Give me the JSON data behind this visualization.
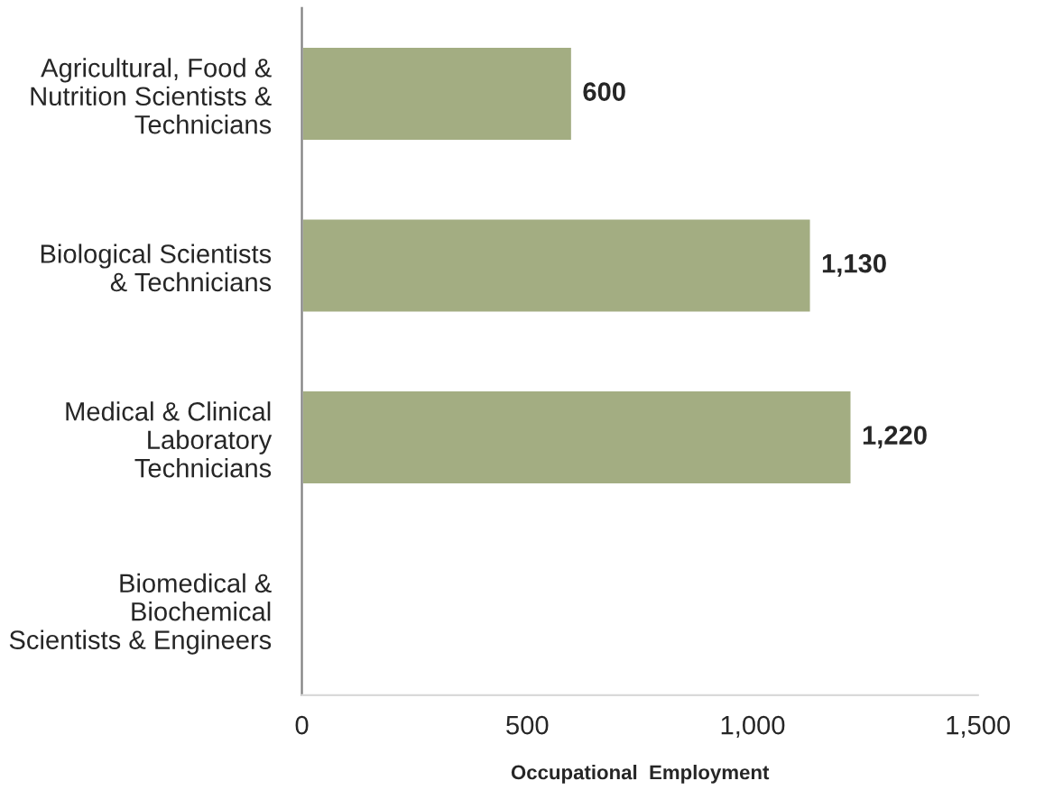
{
  "chart_data": {
    "type": "bar",
    "orientation": "horizontal",
    "xlabel": "Occupational  Employment",
    "categories": [
      "Agricultural, Food &\nNutrition Scientists &\nTechnicians",
      "Biological Scientists\n& Technicians",
      "Medical & Clinical\nLaboratory\nTechnicians",
      "Biomedical &\nBiochemical\nScientists & Engineers"
    ],
    "values": [
      600,
      1130,
      1220,
      null
    ],
    "color": "#a3ad82",
    "value_labels": [
      "600",
      "1,130",
      "1,220",
      null
    ],
    "xlim": [
      0,
      1500
    ],
    "xticks": [
      0,
      500,
      {
        "value": 1000,
        "label": "1,000"
      },
      {
        "value": 1500,
        "label": "1,500"
      }
    ],
    "grid": false,
    "legend": false
  }
}
